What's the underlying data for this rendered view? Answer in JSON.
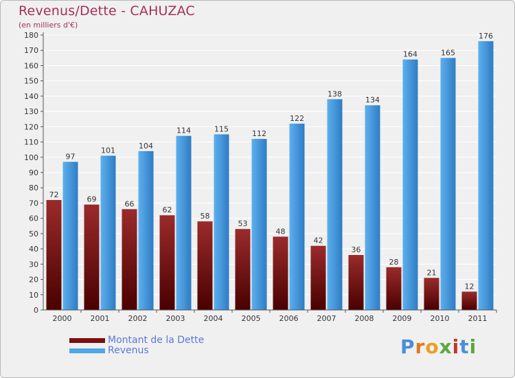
{
  "header": {
    "title": "Revenus/Dette - CAHUZAC",
    "subtitle": "(en milliers d'€)"
  },
  "legend": {
    "items": [
      {
        "label": "Montant de la Dette",
        "color": "#7a0f0f"
      },
      {
        "label": "Revenus",
        "color": "#4ea6e8"
      }
    ]
  },
  "logo": {
    "letters": [
      "P",
      "r",
      "o",
      "x",
      "i",
      "t",
      "i"
    ],
    "colors": [
      "#4a8fd8",
      "#e07a1f",
      "#e8a020",
      "#5aa83c",
      "#c0392b",
      "#4a8fd8",
      "#5aa83c"
    ]
  },
  "colors": {
    "dette_top": "#9a2b2b",
    "dette_bottom": "#4a0000",
    "revenus_top": "#5cb0ee",
    "revenus_bottom": "#2f7cc4",
    "grid": "#ffffff",
    "axis": "#555555"
  },
  "chart_data": {
    "type": "bar",
    "title": "Revenus/Dette - CAHUZAC",
    "ylabel": "(en milliers d'€)",
    "xlabel": "",
    "ylim": [
      0,
      180
    ],
    "yticks": [
      0,
      10,
      20,
      30,
      40,
      50,
      60,
      70,
      80,
      90,
      100,
      110,
      120,
      130,
      140,
      150,
      160,
      170,
      180
    ],
    "grid": true,
    "legend_position": "bottom-left",
    "categories": [
      "2000",
      "2001",
      "2002",
      "2003",
      "2004",
      "2005",
      "2006",
      "2007",
      "2008",
      "2009",
      "2010",
      "2011"
    ],
    "series": [
      {
        "name": "Montant de la Dette",
        "values": [
          72,
          69,
          66,
          62,
          58,
          53,
          48,
          42,
          36,
          28,
          21,
          12
        ]
      },
      {
        "name": "Revenus",
        "values": [
          97,
          101,
          104,
          114,
          115,
          112,
          122,
          138,
          134,
          164,
          165,
          176
        ]
      }
    ]
  }
}
